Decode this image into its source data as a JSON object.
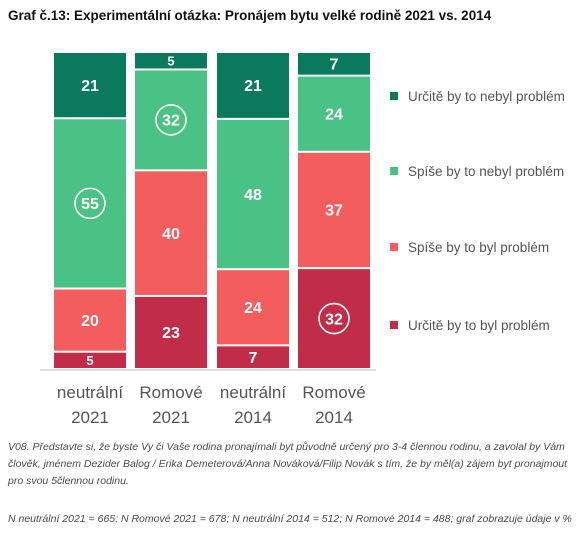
{
  "title": "Graf č.13: Experimentální otázka: Pronájem bytu velké rodině 2021 vs. 2014",
  "legend": [
    {
      "label": "Určitě by to nebyl problém",
      "color": "#0b7a5c"
    },
    {
      "label": "Spíše by to nebyl problém",
      "color": "#4bc285"
    },
    {
      "label": "Spíše by to byl problém",
      "color": "#f45d5d"
    },
    {
      "label": "Určitě by to byl problém",
      "color": "#c12d48"
    }
  ],
  "chart_data": {
    "type": "bar",
    "stacked": true,
    "categories": [
      "neutrální 2021",
      "Romové 2021",
      "neutrální 2014",
      "Romové 2014"
    ],
    "category_lines": [
      [
        "neutrální",
        "2021"
      ],
      [
        "Romové",
        "2021"
      ],
      [
        "neutrální",
        "2014"
      ],
      [
        "Romové",
        "2014"
      ]
    ],
    "series": [
      {
        "name": "Určitě by to byl problém",
        "values": [
          5,
          23,
          7,
          32
        ],
        "color": "#c12d48"
      },
      {
        "name": "Spíše by to byl problém",
        "values": [
          20,
          40,
          24,
          37
        ],
        "color": "#f45d5d"
      },
      {
        "name": "Spíše by to nebyl problém",
        "values": [
          55,
          32,
          48,
          24
        ],
        "color": "#4bc285"
      },
      {
        "name": "Určitě by to nebyl problém",
        "values": [
          21,
          5,
          21,
          7
        ],
        "color": "#0b7a5c"
      }
    ],
    "circled": [
      [
        0,
        2
      ],
      [
        1,
        2
      ],
      [
        3,
        0
      ]
    ],
    "ylim": [
      0,
      100
    ]
  },
  "notes": {
    "question": "V08. Představte si, že byste Vy či Vaše rodina pronajímali byt původně určený pro 3-4 člennou rodinu, a zavolal by Vám člověk, jménem Dezider Balog / Erika Demeterová/Anna Nováková/Filip Novák s tím, že by měl(a) zájem byt pronajmout pro svou 5člennou rodinu.",
    "sample": "N neutrální 2021 = 665; N Romové 2021 = 678; N neutrální 2014 = 512; N Romové 2014 = 488; graf zobrazuje údaje v %"
  }
}
